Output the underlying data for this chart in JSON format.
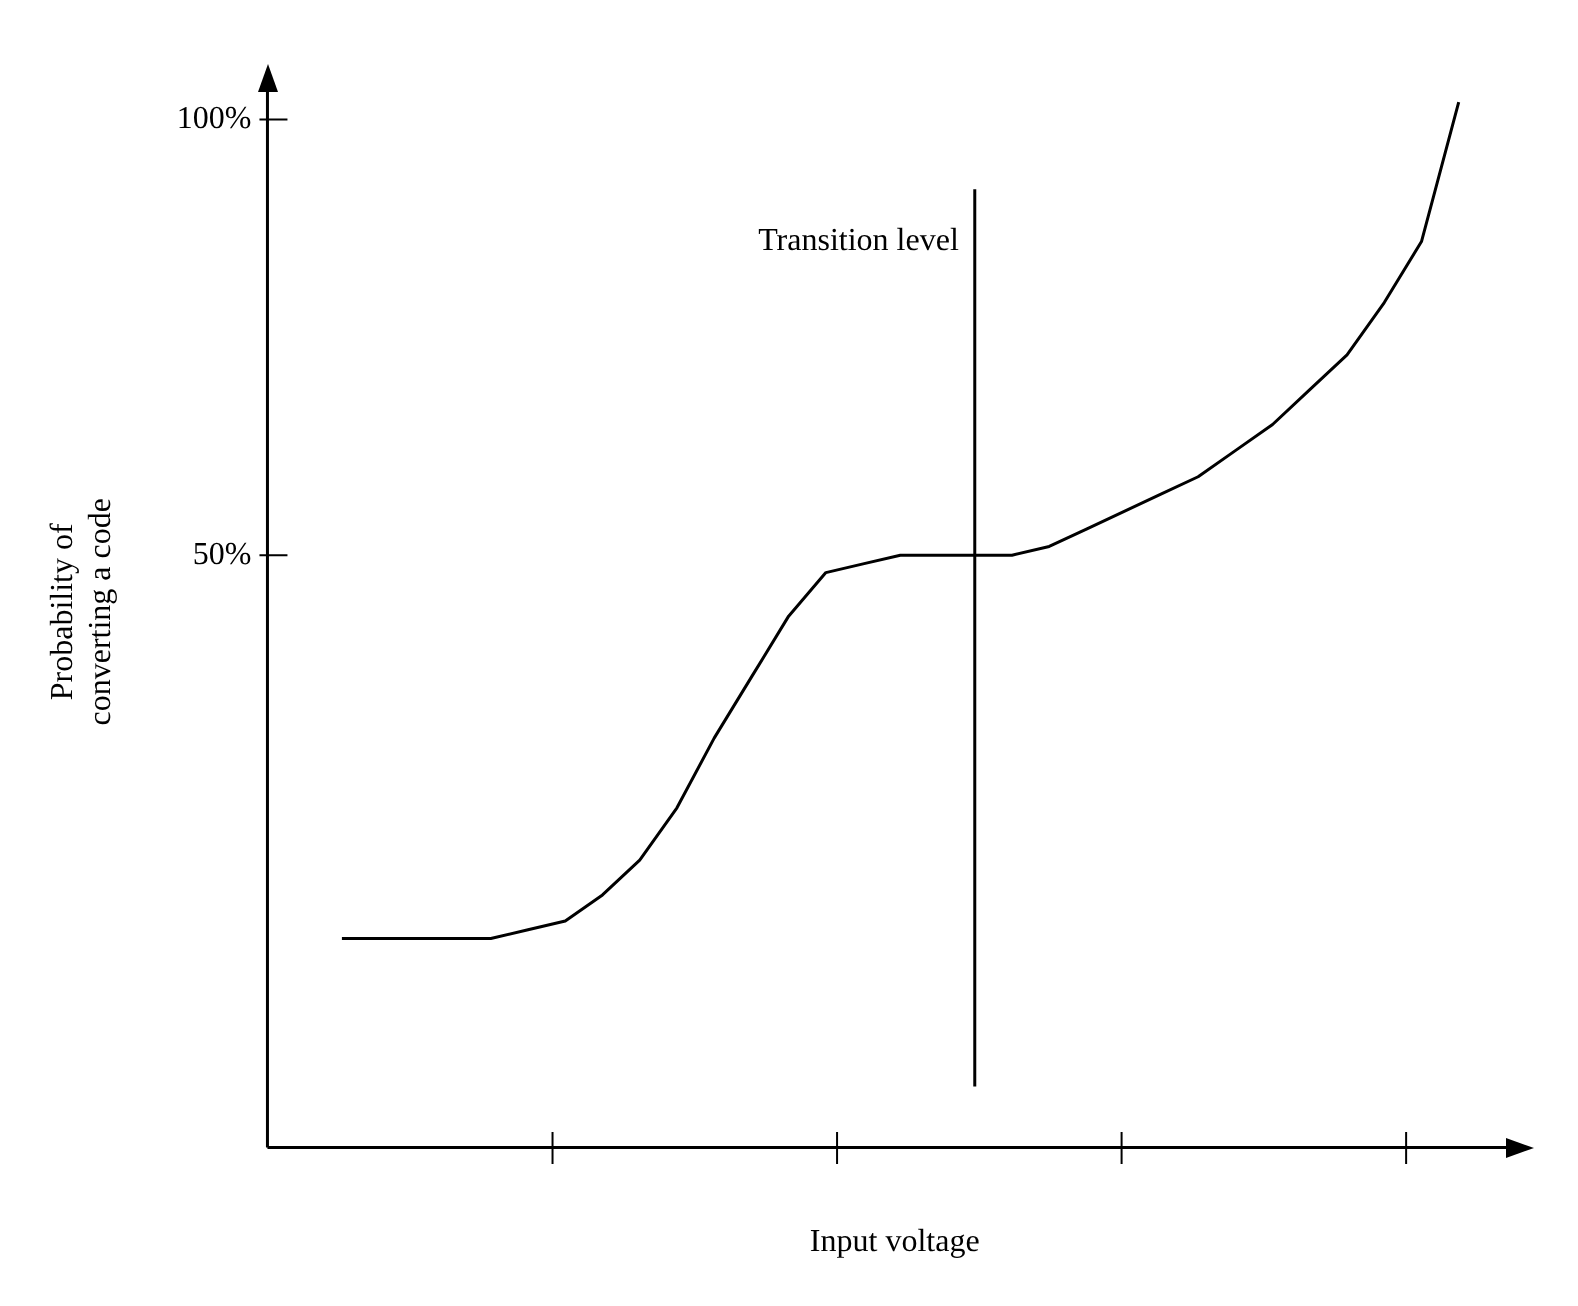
{
  "chart_data": {
    "type": "line",
    "xlabel": "Input voltage",
    "ylabel": "Probability of\nconverting a code",
    "categories": [
      null,
      null,
      null,
      null,
      null,
      null,
      null,
      null,
      null,
      null,
      null,
      null,
      null,
      null,
      null,
      null,
      null,
      null,
      null,
      null,
      null,
      null,
      null,
      null,
      null,
      null,
      null,
      null,
      null,
      null,
      null
    ],
    "series": [
      {
        "color": "#000000",
        "values": [
          6,
          6,
          6,
          6,
          6,
          7,
          8,
          11,
          15,
          21,
          29,
          36,
          43,
          48,
          49,
          50,
          50,
          50,
          50,
          51,
          53,
          55,
          57,
          59,
          62,
          65,
          69,
          73,
          79,
          86,
          102
        ]
      }
    ],
    "ylim": [
      -18,
      105
    ],
    "yticks": [
      {
        "value": 50,
        "label": "50%"
      },
      {
        "value": 100,
        "label": "100%"
      }
    ],
    "annotations": [
      "Transition level"
    ],
    "tick_labels": "y",
    "grid": false,
    "legend": false,
    "marker": "none",
    "line_style": "solid"
  }
}
